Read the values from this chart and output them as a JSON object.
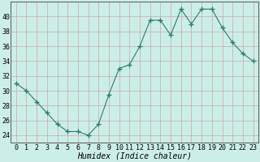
{
  "x": [
    0,
    1,
    2,
    3,
    4,
    5,
    6,
    7,
    8,
    9,
    10,
    11,
    12,
    13,
    14,
    15,
    16,
    17,
    18,
    19,
    20,
    21,
    22,
    23
  ],
  "y": [
    31,
    30,
    28.5,
    27,
    25.5,
    24.5,
    24.5,
    24,
    25.5,
    29.5,
    33,
    33.5,
    36,
    39.5,
    39.5,
    37.5,
    41,
    39,
    41,
    41,
    38.5,
    36.5,
    35,
    34
  ],
  "line_color": "#2e7d6e",
  "marker": "+",
  "marker_size": 4,
  "bg_color": "#cceee8",
  "grid_color_major": "#c8a8a8",
  "grid_color_minor": "#ddd0d0",
  "xlabel": "Humidex (Indice chaleur)",
  "xlim": [
    -0.5,
    23.5
  ],
  "ylim": [
    23,
    42
  ],
  "yticks": [
    24,
    26,
    28,
    30,
    32,
    34,
    36,
    38,
    40
  ],
  "xticks": [
    0,
    1,
    2,
    3,
    4,
    5,
    6,
    7,
    8,
    9,
    10,
    11,
    12,
    13,
    14,
    15,
    16,
    17,
    18,
    19,
    20,
    21,
    22,
    23
  ],
  "xlabel_fontsize": 7,
  "tick_fontsize": 6,
  "linewidth": 0.8,
  "marker_color": "#2e7d6e"
}
